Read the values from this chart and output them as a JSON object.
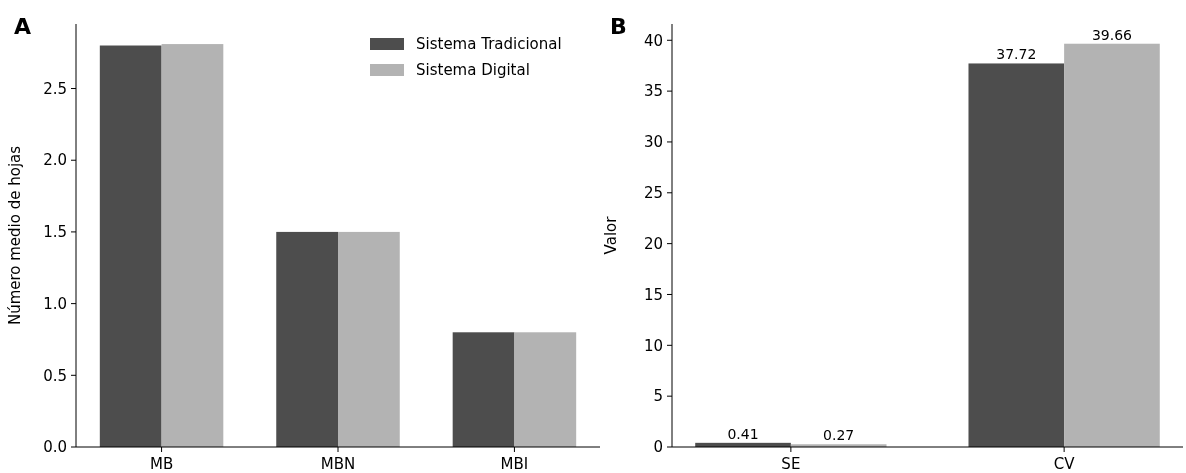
{
  "chart_data": [
    {
      "type": "bar",
      "title": "A",
      "categories": [
        "MB",
        "MBN",
        "MBI"
      ],
      "ylabel": "Número medio de hojas",
      "ylim": [
        0,
        2.95
      ],
      "yticks": [
        {
          "value": 0,
          "label": "0.0"
        },
        0.5,
        {
          "value": 1,
          "label": "1.0"
        },
        1.5,
        {
          "value": 2,
          "label": "2.0"
        },
        2.5
      ],
      "legend": "top right",
      "series": [
        {
          "name": "Sistema Tradicional",
          "color": "#4d4d4d",
          "values": [
            2.8,
            1.5,
            0.8
          ]
        },
        {
          "name": "Sistema Digital",
          "color": "#b3b3b3",
          "values": [
            2.81,
            1.5,
            0.8
          ]
        }
      ]
    },
    {
      "type": "bar",
      "title": "B",
      "categories": [
        "SE",
        "CV"
      ],
      "ylabel": "Valor",
      "ylim": [
        0,
        41.6
      ],
      "yticks": [
        0,
        5,
        10,
        15,
        20,
        25,
        30,
        35,
        40
      ],
      "data_labels": true,
      "series": [
        {
          "color": "#4d4d4d",
          "values": [
            0.41,
            37.72
          ]
        },
        {
          "color": "#b3b3b3",
          "values": [
            0.27,
            39.66
          ]
        }
      ]
    }
  ]
}
